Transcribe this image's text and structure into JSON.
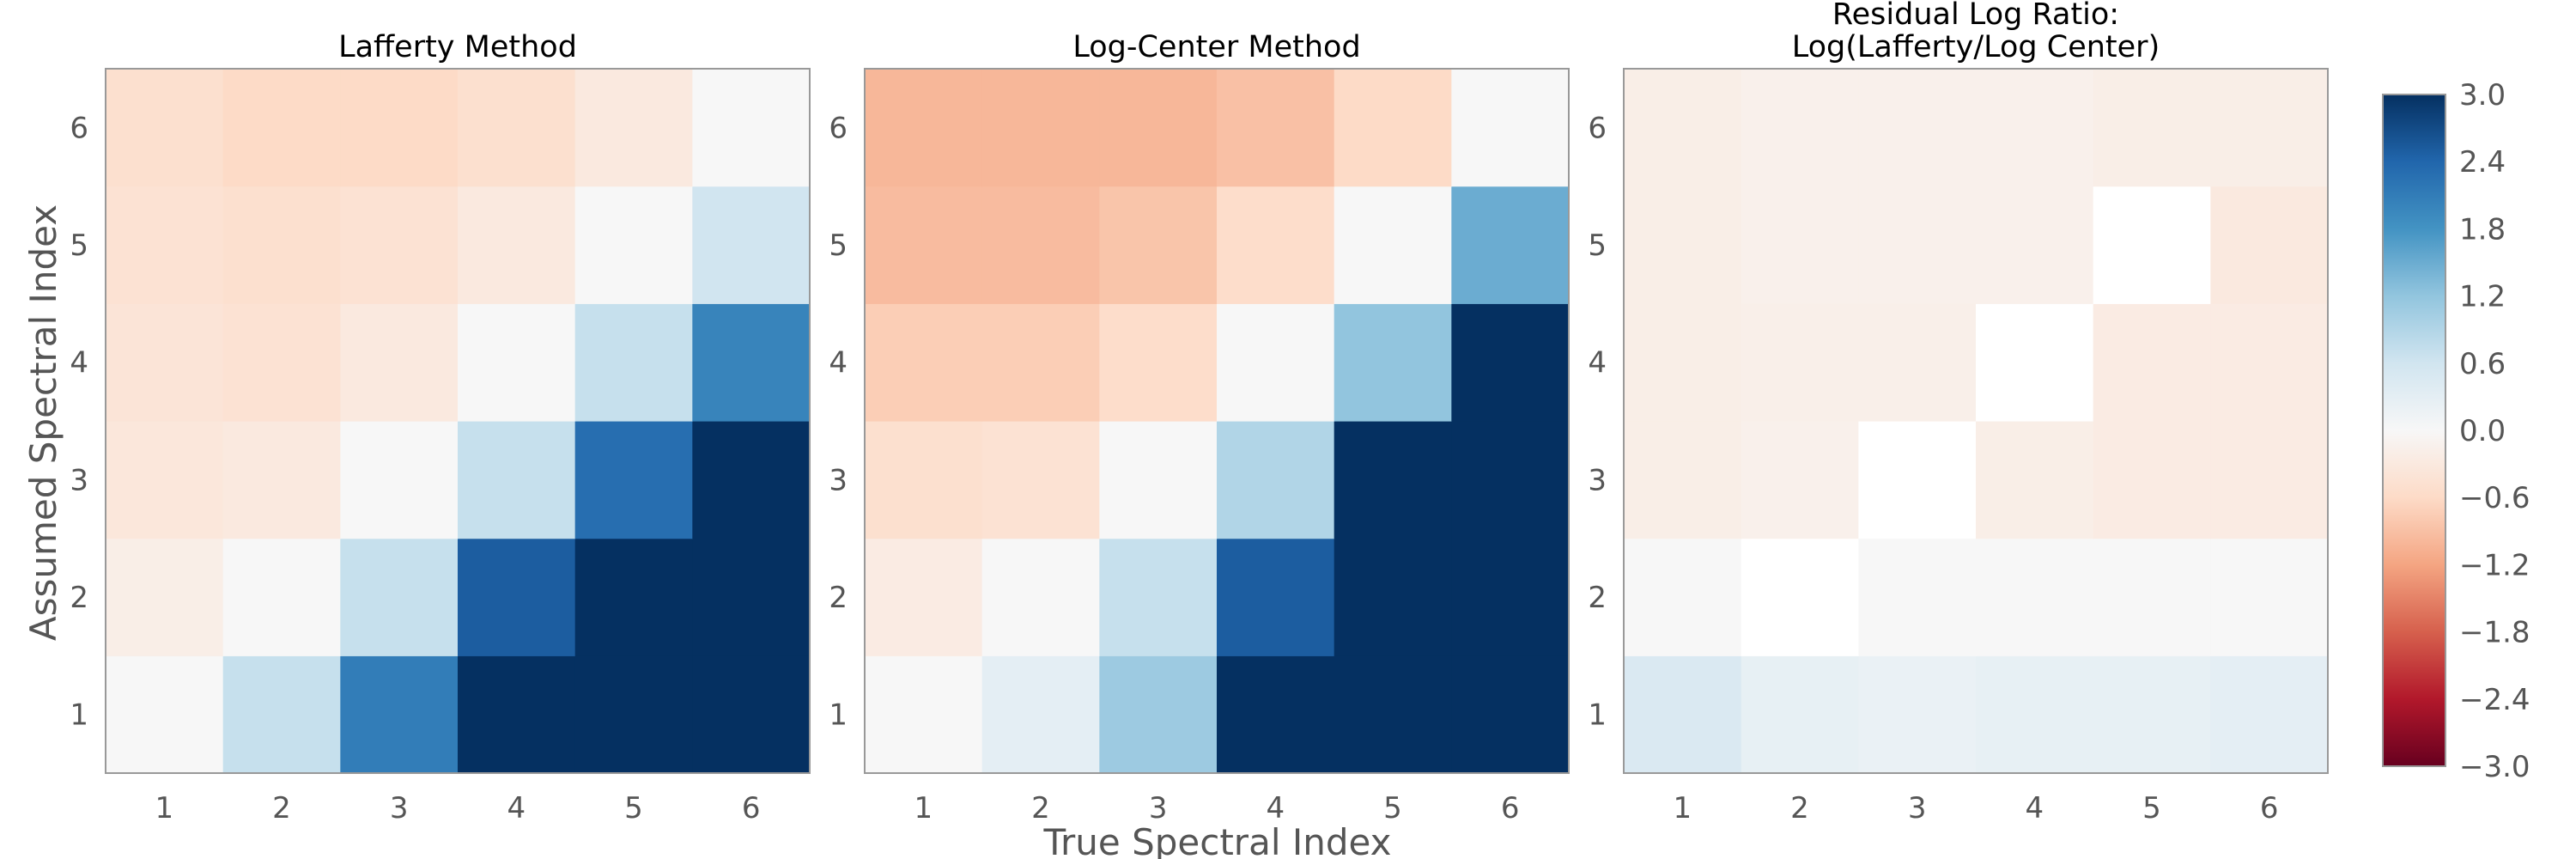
{
  "figure": {
    "xlabel": "True Spectral Index",
    "ylabel": "Assumed Spectral Index"
  },
  "colorbar": {
    "vmin": -3.0,
    "vmax": 3.0,
    "colormap": "RdBu",
    "ticks": [
      "3.0",
      "2.4",
      "1.8",
      "1.2",
      "0.6",
      "0.0",
      "−0.6",
      "−1.2",
      "−1.8",
      "−2.4",
      "−3.0"
    ]
  },
  "chart_data": [
    {
      "type": "heatmap",
      "title": "Lafferty Method",
      "title_lines": [
        "Lafferty Method"
      ],
      "x": [
        1,
        2,
        3,
        4,
        5,
        6
      ],
      "y": [
        1,
        2,
        3,
        4,
        5,
        6
      ],
      "x_tick_labels": [
        "1",
        "2",
        "3",
        "4",
        "5",
        "6"
      ],
      "y_tick_labels": [
        "1",
        "2",
        "3",
        "4",
        "5",
        "6"
      ],
      "values": [
        [
          0.0,
          0.7,
          2.1,
          3.0,
          3.0,
          3.0
        ],
        [
          -0.2,
          0.0,
          0.7,
          2.5,
          3.0,
          3.0
        ],
        [
          -0.35,
          -0.3,
          0.0,
          0.7,
          2.3,
          3.0
        ],
        [
          -0.4,
          -0.45,
          -0.3,
          0.0,
          0.7,
          2.0
        ],
        [
          -0.45,
          -0.5,
          -0.45,
          -0.3,
          0.0,
          0.6
        ],
        [
          -0.5,
          -0.6,
          -0.6,
          -0.5,
          -0.3,
          0.0
        ]
      ]
    },
    {
      "type": "heatmap",
      "title": "Log-Center Method",
      "title_lines": [
        "Log-Center Method"
      ],
      "x": [
        1,
        2,
        3,
        4,
        5,
        6
      ],
      "y": [
        1,
        2,
        3,
        4,
        5,
        6
      ],
      "x_tick_labels": [
        "1",
        "2",
        "3",
        "4",
        "5",
        "6"
      ],
      "y_tick_labels": [
        "1",
        "2",
        "3",
        "4",
        "5",
        "6"
      ],
      "values": [
        [
          0.0,
          0.3,
          1.1,
          3.0,
          3.0,
          3.0
        ],
        [
          -0.25,
          0.0,
          0.7,
          2.5,
          3.0,
          3.0
        ],
        [
          -0.5,
          -0.45,
          0.0,
          0.9,
          3.0,
          3.0
        ],
        [
          -0.75,
          -0.75,
          -0.55,
          0.0,
          1.2,
          3.0
        ],
        [
          -0.95,
          -0.95,
          -0.85,
          -0.55,
          0.0,
          1.5
        ],
        [
          -1.0,
          -1.0,
          -1.0,
          -0.9,
          -0.6,
          0.0
        ]
      ]
    },
    {
      "type": "heatmap",
      "title": "Residual Log Ratio: Log(Lafferty/Log Center)",
      "title_lines": [
        "Residual Log Ratio:",
        "Log(Lafferty/Log Center)"
      ],
      "x": [
        1,
        2,
        3,
        4,
        5,
        6
      ],
      "y": [
        1,
        2,
        3,
        4,
        5,
        6
      ],
      "x_tick_labels": [
        "1",
        "2",
        "3",
        "4",
        "5",
        "6"
      ],
      "y_tick_labels": [
        "1",
        "2",
        "3",
        "4",
        "5",
        "6"
      ],
      "values": [
        [
          0.45,
          0.25,
          0.2,
          0.25,
          0.25,
          0.3
        ],
        [
          0.0,
          null,
          0.0,
          0.0,
          0.0,
          0.0
        ],
        [
          -0.2,
          -0.15,
          null,
          -0.2,
          -0.25,
          -0.25
        ],
        [
          -0.2,
          -0.18,
          -0.18,
          null,
          -0.25,
          -0.25
        ],
        [
          -0.2,
          -0.15,
          -0.15,
          -0.15,
          null,
          -0.3
        ],
        [
          -0.2,
          -0.15,
          -0.15,
          -0.15,
          -0.2,
          -0.2
        ]
      ]
    }
  ]
}
